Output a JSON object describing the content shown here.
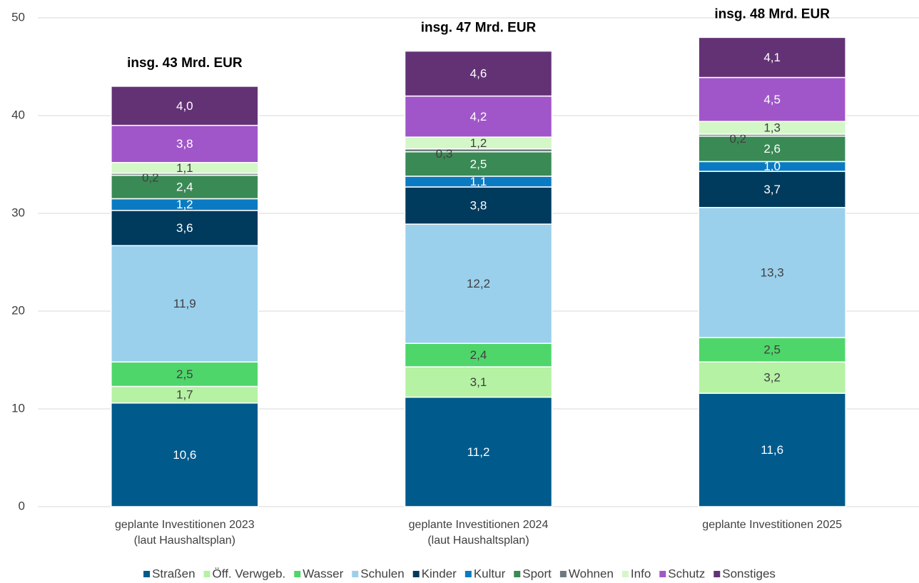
{
  "chart_data": {
    "type": "stacked_bar",
    "categories": [
      "geplante Investitionen 2023 (laut Haushaltsplan)",
      "geplante Investitionen 2024 (laut Haushaltsplan)",
      "geplante Investitionen 2025"
    ],
    "annotations": [
      "insg. 43 Mrd. EUR",
      "insg. 47 Mrd. EUR",
      "insg. 48 Mrd. EUR"
    ],
    "series": [
      {
        "name": "Straßen",
        "color": "#005a8c",
        "values": [
          10.6,
          11.2,
          11.6
        ],
        "value_labels": [
          "10,6",
          "11,2",
          "11,6"
        ]
      },
      {
        "name": "Öff. Verwgeb.",
        "color": "#b5f2a3",
        "values": [
          1.7,
          3.1,
          3.2
        ],
        "value_labels": [
          "1,7",
          "3,1",
          "3,2"
        ]
      },
      {
        "name": "Wasser",
        "color": "#4fd66a",
        "values": [
          2.5,
          2.4,
          2.5
        ],
        "value_labels": [
          "2,5",
          "2,4",
          "2,5"
        ]
      },
      {
        "name": "Schulen",
        "color": "#9ad0ec",
        "values": [
          11.9,
          12.2,
          13.3
        ],
        "value_labels": [
          "11,9",
          "12,2",
          "13,3"
        ]
      },
      {
        "name": "Kinder",
        "color": "#003a5c",
        "values": [
          3.6,
          3.8,
          3.7
        ],
        "value_labels": [
          "3,6",
          "3,8",
          "3,7"
        ]
      },
      {
        "name": "Kultur",
        "color": "#0a7bc2",
        "values": [
          1.2,
          1.1,
          1.0
        ],
        "value_labels": [
          "1,2",
          "1,1",
          "1,0"
        ]
      },
      {
        "name": "Sport",
        "color": "#3a8a55",
        "values": [
          2.4,
          2.5,
          2.6
        ],
        "value_labels": [
          "2,4",
          "2,5",
          "2,6"
        ]
      },
      {
        "name": "Wohnen",
        "color": "#6e7a80",
        "values": [
          0.2,
          0.3,
          0.2
        ],
        "value_labels": [
          "0,2",
          "0,3",
          "0,2"
        ]
      },
      {
        "name": "Info",
        "color": "#d4f7c8",
        "values": [
          1.1,
          1.2,
          1.3
        ],
        "value_labels": [
          "1,1",
          "1,2",
          "1,3"
        ]
      },
      {
        "name": "Schutz",
        "color": "#a056c8",
        "values": [
          3.8,
          4.2,
          4.5
        ],
        "value_labels": [
          "3,8",
          "4,2",
          "4,5"
        ]
      },
      {
        "name": "Sonstiges",
        "color": "#633275",
        "values": [
          4.0,
          4.6,
          4.1
        ],
        "value_labels": [
          "4,0",
          "4,6",
          "4,1"
        ]
      }
    ],
    "ylim": [
      0,
      50
    ],
    "yticks": [
      0,
      10,
      20,
      30,
      40,
      50
    ],
    "grid": true,
    "legend": "bottom"
  }
}
